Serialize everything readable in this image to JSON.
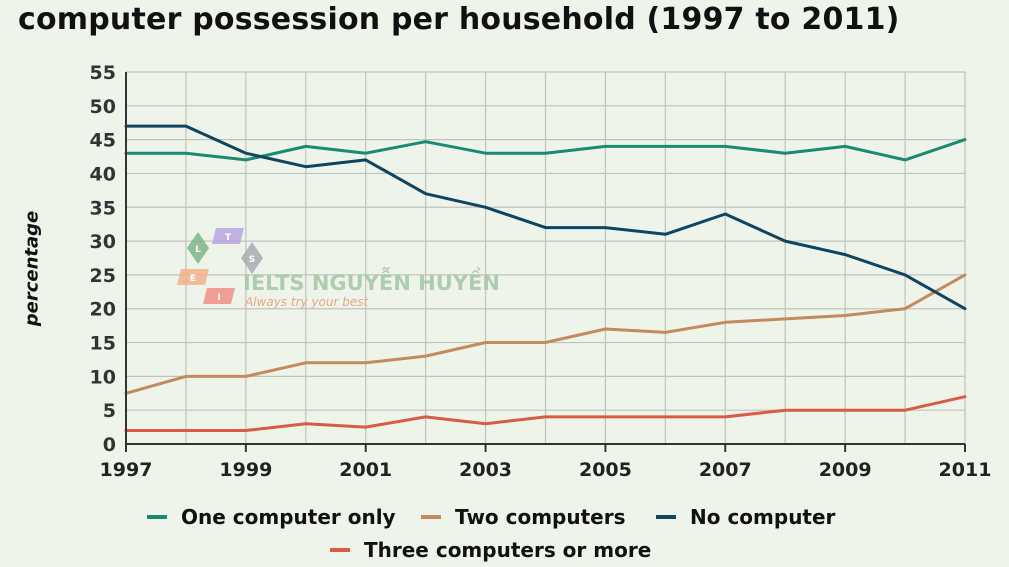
{
  "chart_data": {
    "type": "line",
    "title": "computer possession per household (1997 to 2011)",
    "ylabel": "percentage",
    "xlabel": "",
    "xlim": [
      1997,
      2011
    ],
    "ylim": [
      0,
      55
    ],
    "x": [
      1997,
      1998,
      1999,
      2000,
      2001,
      2002,
      2003,
      2004,
      2005,
      2006,
      2007,
      2008,
      2009,
      2010,
      2011
    ],
    "x_ticks": [
      1997,
      1999,
      2001,
      2003,
      2005,
      2007,
      2009,
      2011
    ],
    "y_ticks": [
      0,
      5,
      10,
      15,
      20,
      25,
      30,
      35,
      40,
      45,
      50,
      55
    ],
    "grid": true,
    "legend_position": "bottom",
    "series": [
      {
        "name": "One computer only",
        "color": "#1a8a73",
        "values": [
          43,
          43,
          42,
          44,
          43,
          44.7,
          43,
          43,
          44,
          44,
          44,
          43,
          44,
          42,
          45
        ]
      },
      {
        "name": "Two computers",
        "color": "#c48a5e",
        "values": [
          7.5,
          10,
          10,
          12,
          12,
          13,
          15,
          15,
          17,
          16.5,
          18,
          18.5,
          19,
          20,
          25
        ]
      },
      {
        "name": "No computer",
        "color": "#0f4560",
        "values": [
          47,
          47,
          43,
          41,
          42,
          37,
          35,
          32,
          32,
          31,
          34,
          30,
          28,
          25,
          20
        ]
      },
      {
        "name": "Three computers or more",
        "color": "#d95a45",
        "values": [
          2,
          2,
          2,
          3,
          2.5,
          4,
          3,
          4,
          4,
          4,
          4,
          5,
          5,
          5,
          7
        ]
      }
    ]
  },
  "watermark": {
    "logo_letters": [
      "L",
      "T",
      "S",
      "E",
      "I"
    ],
    "brand": "IELTS NGUYỄN HUYỀN",
    "slogan": "Always try your best"
  }
}
